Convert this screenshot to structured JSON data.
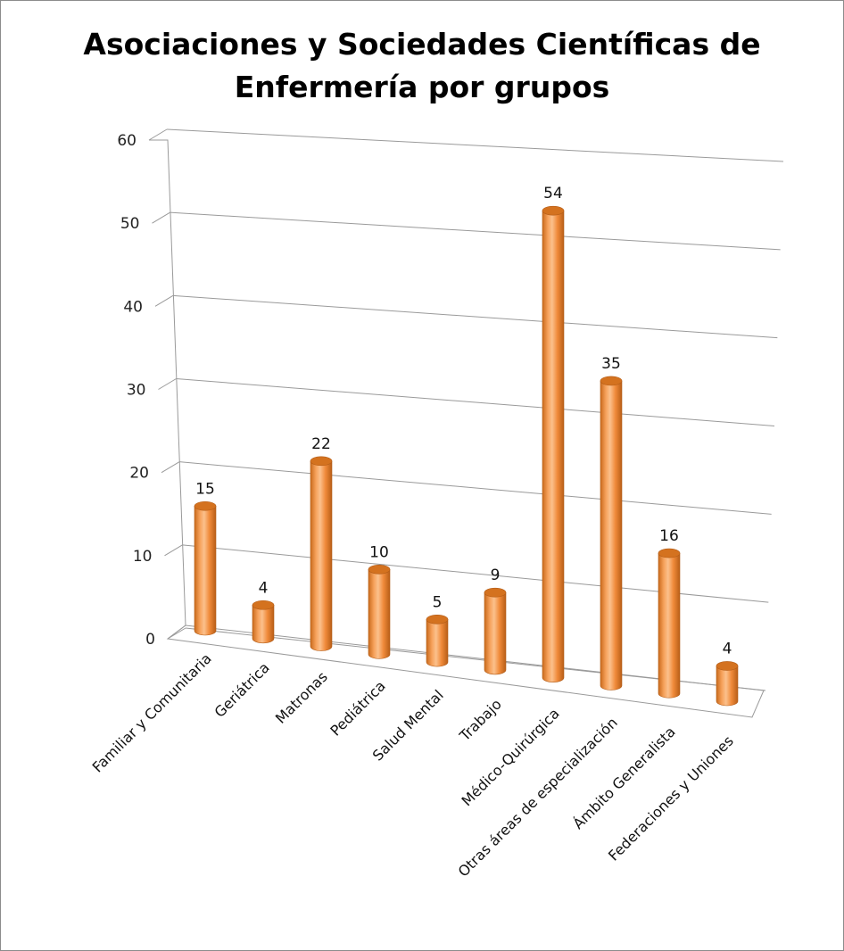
{
  "chart_data": {
    "type": "bar",
    "title": "Asociaciones y Sociedades Científicas de Enfermería por grupos",
    "title_lines": [
      "Asociaciones y Sociedades Científicas de",
      "Enfermería por grupos"
    ],
    "categories": [
      "Familiar y Comunitaria",
      "Geriátrica",
      "Matronas",
      "Pediátrica",
      "Salud Mental",
      "Trabajo",
      "Médico-Quirúrgica",
      "Otras áreas de especialización",
      "Ámbito Generalista",
      "Federaciones y Uniones"
    ],
    "values": [
      15,
      4,
      22,
      10,
      5,
      9,
      54,
      35,
      16,
      4
    ],
    "ylim": [
      0,
      60
    ],
    "yticks": [
      0,
      10,
      20,
      30,
      40,
      50,
      60
    ],
    "xlabel": "",
    "ylabel": "",
    "grid": true,
    "data_labels": true,
    "bar_color": "#F79646"
  }
}
